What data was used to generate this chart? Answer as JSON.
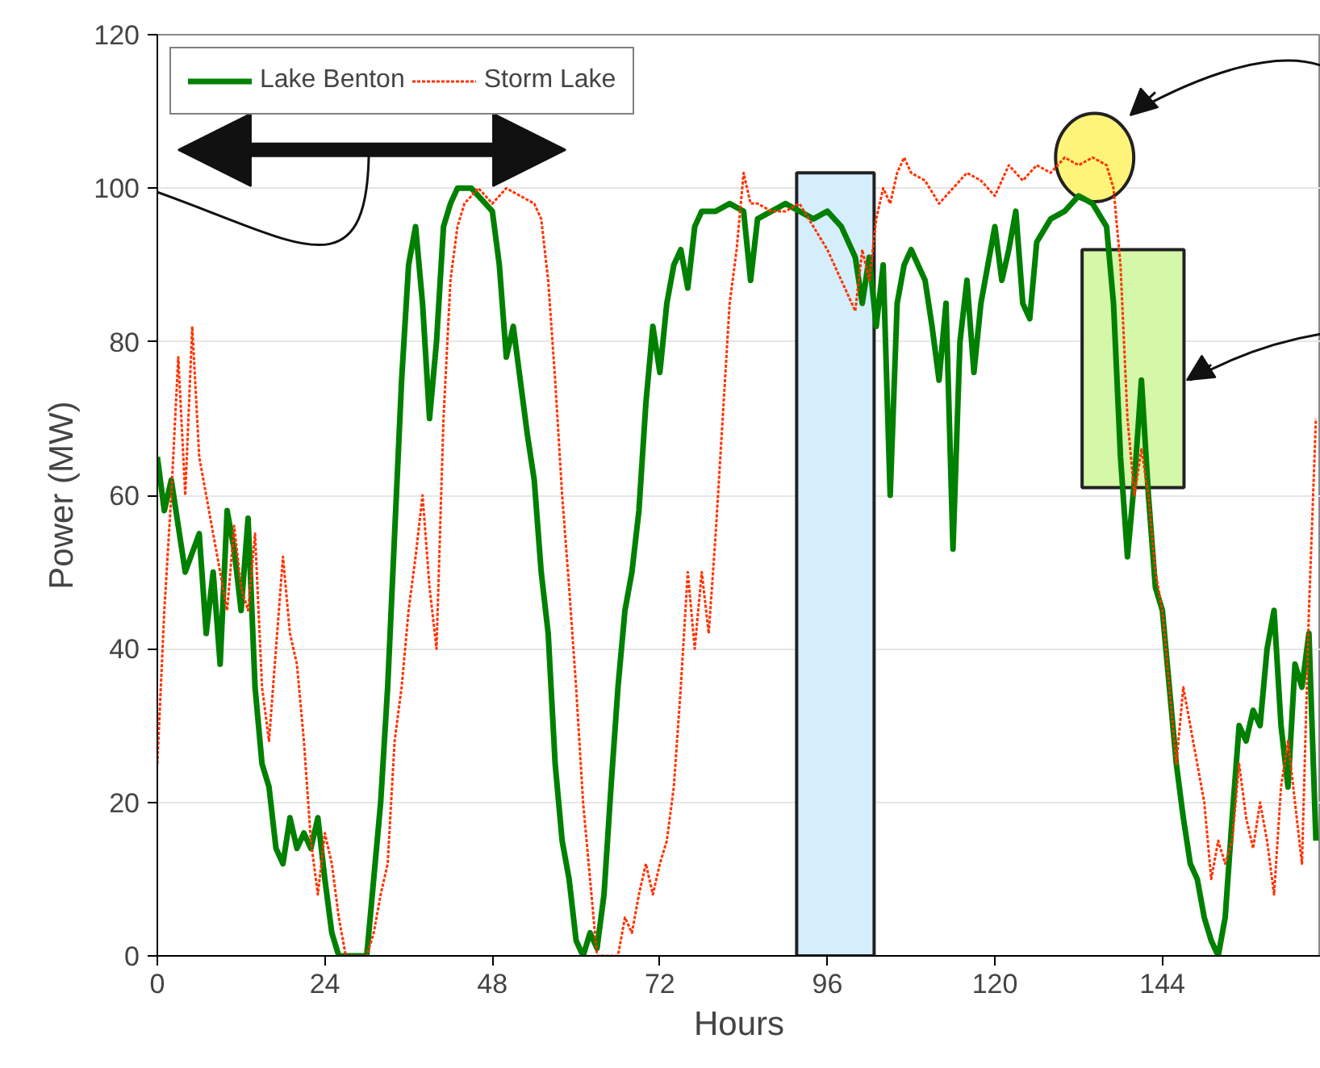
{
  "chart_data": {
    "type": "line",
    "xlabel": "Hours",
    "ylabel": "Power (MW)",
    "xlim": [
      0,
      166.7
    ],
    "xticks": [
      0,
      24,
      48,
      72,
      96,
      120,
      144
    ],
    "ylim": [
      0,
      120
    ],
    "yticks": [
      0,
      20,
      40,
      60,
      80,
      100,
      120
    ],
    "bands": [
      {
        "axis": "x",
        "from": 91.6,
        "to": 102.7,
        "color": "#d4eefc"
      }
    ],
    "grid": "y",
    "legend": "top left",
    "marker": "none",
    "series": [
      {
        "name": "Lake Benton",
        "color": "#008000",
        "line_style": "solid",
        "x": [
          0,
          1,
          2,
          4,
          6,
          7,
          8,
          9,
          10,
          11,
          12,
          13,
          14,
          15,
          16,
          17,
          18,
          19,
          20,
          21,
          22,
          23,
          24,
          25,
          26,
          30,
          31,
          32,
          33,
          34,
          35,
          36,
          37,
          38,
          39,
          40,
          41,
          42,
          43,
          45,
          46,
          48,
          49,
          50,
          51,
          52,
          53,
          54,
          55,
          56,
          57,
          58,
          59,
          60,
          61,
          62,
          63,
          64,
          65,
          66,
          67,
          68,
          69,
          70,
          71,
          72,
          73,
          74,
          75,
          76,
          77,
          78,
          80,
          82,
          84,
          85,
          86,
          88,
          90,
          92,
          94,
          96,
          98,
          100,
          101,
          102,
          103,
          104,
          105,
          106,
          107,
          108,
          110,
          111,
          112,
          113,
          114,
          115,
          116,
          117,
          118,
          120,
          121,
          122,
          123,
          124,
          125,
          126,
          128,
          130,
          132,
          134,
          136,
          137,
          138,
          139,
          140,
          141,
          142,
          143,
          144,
          145,
          146,
          147,
          148,
          149,
          150,
          151,
          152,
          153,
          154,
          155,
          156,
          157,
          158,
          159,
          160,
          161,
          162,
          163,
          164,
          165,
          166
        ],
        "values": [
          65,
          58,
          62,
          50,
          55,
          42,
          50,
          38,
          58,
          53,
          45,
          57,
          35,
          25,
          22,
          14,
          12,
          18,
          14,
          16,
          14,
          18,
          10,
          3,
          0,
          0,
          10,
          20,
          35,
          55,
          75,
          90,
          95,
          85,
          70,
          80,
          95,
          98,
          100,
          100,
          99,
          97,
          90,
          78,
          82,
          75,
          68,
          62,
          50,
          42,
          25,
          15,
          10,
          2,
          0,
          3,
          1,
          8,
          22,
          35,
          45,
          50,
          58,
          72,
          82,
          76,
          85,
          90,
          92,
          87,
          95,
          97,
          97,
          98,
          97,
          88,
          96,
          97,
          98,
          97,
          96,
          97,
          95,
          91,
          85,
          91,
          82,
          90,
          60,
          85,
          90,
          92,
          88,
          82,
          75,
          85,
          53,
          80,
          88,
          76,
          85,
          95,
          88,
          92,
          97,
          85,
          83,
          93,
          96,
          97,
          99,
          98,
          95,
          85,
          65,
          52,
          62,
          75,
          60,
          48,
          45,
          35,
          25,
          18,
          12,
          10,
          5,
          2,
          0,
          5,
          18,
          30,
          28,
          32,
          30,
          40,
          45,
          30,
          22,
          38,
          35,
          42,
          15
        ]
      },
      {
        "name": "Storm Lake",
        "color": "#ff3300",
        "line_style": "dotted",
        "x": [
          0,
          1,
          2,
          3,
          4,
          5,
          6,
          7,
          8,
          9,
          10,
          11,
          12,
          13,
          14,
          15,
          16,
          17,
          18,
          19,
          20,
          21,
          22,
          23,
          24,
          25,
          26,
          27,
          30,
          31,
          32,
          33,
          34,
          35,
          36,
          37,
          38,
          39,
          40,
          41,
          42,
          43,
          44,
          46,
          48,
          50,
          52,
          54,
          55,
          56,
          57,
          58,
          59,
          60,
          61,
          62,
          63,
          66,
          67,
          68,
          69,
          70,
          71,
          72,
          73,
          74,
          75,
          76,
          77,
          78,
          79,
          80,
          81,
          82,
          83,
          84,
          85,
          86,
          88,
          90,
          92,
          94,
          96,
          98,
          100,
          101,
          102,
          103,
          104,
          105,
          106,
          107,
          108,
          110,
          112,
          114,
          116,
          118,
          120,
          122,
          124,
          126,
          128,
          130,
          132,
          134,
          136,
          137,
          138,
          139,
          140,
          141,
          142,
          143,
          144,
          145,
          146,
          147,
          148,
          149,
          150,
          151,
          152,
          153,
          154,
          155,
          156,
          157,
          158,
          159,
          160,
          161,
          162,
          163,
          164,
          165,
          166
        ],
        "values": [
          25,
          45,
          60,
          78,
          60,
          82,
          65,
          60,
          55,
          50,
          45,
          56,
          48,
          45,
          55,
          35,
          28,
          40,
          52,
          42,
          38,
          28,
          15,
          8,
          16,
          12,
          5,
          0,
          0,
          3,
          8,
          12,
          28,
          35,
          45,
          52,
          60,
          48,
          40,
          70,
          88,
          95,
          98,
          100,
          98,
          100,
          99,
          98,
          96,
          88,
          75,
          60,
          48,
          35,
          20,
          10,
          0,
          0,
          5,
          3,
          8,
          12,
          8,
          12,
          15,
          22,
          35,
          50,
          40,
          50,
          42,
          55,
          70,
          85,
          92,
          102,
          98,
          98,
          97,
          97,
          98,
          95,
          92,
          88,
          84,
          92,
          88,
          96,
          100,
          98,
          102,
          104,
          102,
          101,
          98,
          100,
          102,
          101,
          99,
          103,
          101,
          103,
          102,
          104,
          103,
          104,
          103,
          100,
          90,
          70,
          60,
          66,
          60,
          50,
          45,
          35,
          25,
          35,
          30,
          25,
          20,
          10,
          15,
          12,
          15,
          25,
          18,
          14,
          20,
          15,
          8,
          22,
          28,
          20,
          12,
          45,
          70
        ]
      }
    ]
  }
}
